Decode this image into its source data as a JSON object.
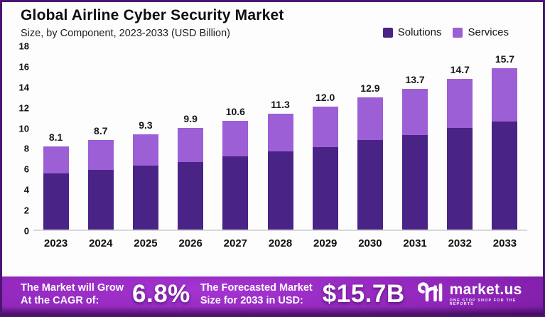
{
  "header": {
    "title": "Global Airline Cyber Security Market",
    "subtitle": "Size, by Component, 2023-2033 (USD Billion)"
  },
  "colors": {
    "solutions": "#4a2387",
    "services": "#9c5fd6",
    "frame_border": "#4a1573",
    "banner_purple": "#9127bb",
    "text_dark": "#111111",
    "banner_text": "#ffffff"
  },
  "chart_data": {
    "type": "bar",
    "stacked": true,
    "title": "Global Airline Cyber Security Market",
    "subtitle": "Size, by Component, 2023-2033 (USD Billion)",
    "categories": [
      "2023",
      "2024",
      "2025",
      "2026",
      "2027",
      "2028",
      "2029",
      "2030",
      "2031",
      "2032",
      "2033"
    ],
    "series": [
      {
        "name": "Solutions",
        "color": "#4a2387",
        "values": [
          5.5,
          5.8,
          6.2,
          6.6,
          7.1,
          7.6,
          8.0,
          8.7,
          9.2,
          9.9,
          10.5
        ]
      },
      {
        "name": "Services",
        "color": "#9c5fd6",
        "values": [
          2.6,
          2.9,
          3.1,
          3.3,
          3.5,
          3.7,
          4.0,
          4.2,
          4.5,
          4.8,
          5.2
        ]
      }
    ],
    "totals": [
      8.1,
      8.7,
      9.3,
      9.9,
      10.6,
      11.3,
      12.0,
      12.9,
      13.7,
      14.7,
      15.7
    ],
    "total_labels": [
      "8.1",
      "8.7",
      "9.3",
      "9.9",
      "10.6",
      "11.3",
      "12.0",
      "12.9",
      "13.7",
      "14.7",
      "15.7"
    ],
    "xlabel": "",
    "ylabel": "",
    "ylim": [
      0,
      18
    ],
    "ytick_step": 2,
    "grid": false,
    "legend_position": "top-right"
  },
  "banner": {
    "left_line1": "The Market will Grow",
    "left_line2": "At the CAGR of:",
    "cagr_value": "6.8%",
    "mid_line1": "The Forecasted Market",
    "mid_line2": "Size for 2033 in USD:",
    "forecast_value": "$15.7B",
    "brand_name": "market.us",
    "brand_tagline": "ONE STOP SHOP FOR THE REPORTS"
  }
}
